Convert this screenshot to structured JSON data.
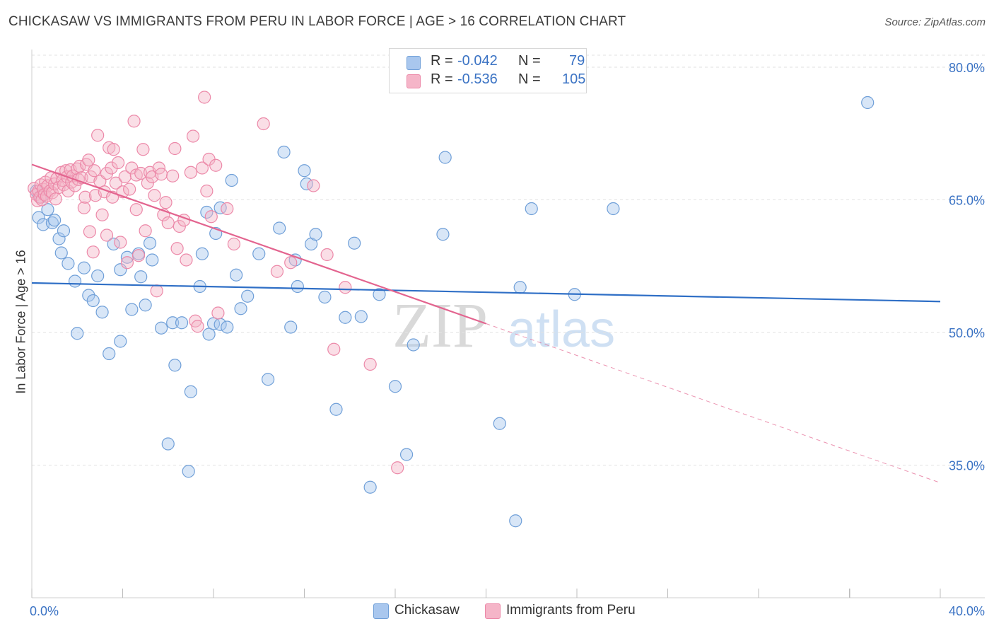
{
  "title": "CHICKASAW VS IMMIGRANTS FROM PERU IN LABOR FORCE | AGE > 16 CORRELATION CHART",
  "source": "Source: ZipAtlas.com",
  "watermark": {
    "zip": "ZIP",
    "atlas": "atlas"
  },
  "legend": [
    {
      "r_label": "R =",
      "r_value": "-0.042",
      "n_label": "N =",
      "n_value": "79",
      "color": "#a9c7ee"
    },
    {
      "r_label": "R =",
      "r_value": "-0.536",
      "n_label": "N =",
      "n_value": "105",
      "color": "#f5b5c8"
    }
  ],
  "colors": {
    "blue_fill": "#a9c7ee",
    "blue_stroke": "#6f9fd8",
    "blue_line": "#2f6fc6",
    "pink_fill": "#f5b5c8",
    "pink_stroke": "#ec88a8",
    "pink_line": "#e3648f",
    "axis_text": "#3b73c4",
    "grid": "#e2e2e2"
  },
  "chart_data": {
    "type": "scatter",
    "title": "CHICKASAW VS IMMIGRANTS FROM PERU IN LABOR FORCE | AGE > 16 CORRELATION CHART",
    "xlabel": "",
    "ylabel": "In Labor Force | Age > 16",
    "xlim": [
      0,
      40
    ],
    "ylim": [
      20,
      82
    ],
    "x_tick_labels": [
      "0.0%",
      "40.0%"
    ],
    "y_ticks": [
      35,
      50,
      65,
      80
    ],
    "y_tick_labels": [
      "35.0%",
      "50.0%",
      "65.0%",
      "80.0%"
    ],
    "grid": true,
    "series": [
      {
        "name": "Chickasaw",
        "color": "#a9c7ee",
        "trend": {
          "x": [
            0,
            40
          ],
          "y": [
            55.6,
            53.5
          ],
          "style": "solid"
        },
        "points": [
          [
            0.2,
            66.0
          ],
          [
            0.4,
            65.3
          ],
          [
            0.3,
            63.0
          ],
          [
            0.5,
            62.2
          ],
          [
            0.7,
            63.9
          ],
          [
            0.9,
            62.4
          ],
          [
            1.0,
            62.7
          ],
          [
            1.2,
            60.6
          ],
          [
            1.4,
            61.5
          ],
          [
            1.3,
            59.0
          ],
          [
            1.6,
            57.8
          ],
          [
            1.9,
            55.8
          ],
          [
            2.3,
            57.3
          ],
          [
            2.0,
            49.9
          ],
          [
            2.5,
            54.2
          ],
          [
            2.7,
            53.6
          ],
          [
            2.9,
            56.4
          ],
          [
            3.1,
            52.3
          ],
          [
            3.4,
            47.6
          ],
          [
            3.6,
            60.0
          ],
          [
            3.9,
            49.0
          ],
          [
            3.9,
            57.1
          ],
          [
            4.2,
            58.5
          ],
          [
            4.4,
            52.6
          ],
          [
            4.7,
            58.9
          ],
          [
            4.8,
            56.3
          ],
          [
            5.0,
            53.1
          ],
          [
            5.2,
            60.1
          ],
          [
            5.3,
            58.2
          ],
          [
            5.7,
            50.5
          ],
          [
            6.0,
            37.4
          ],
          [
            6.2,
            51.1
          ],
          [
            6.3,
            46.3
          ],
          [
            6.6,
            51.1
          ],
          [
            6.9,
            34.3
          ],
          [
            7.0,
            43.3
          ],
          [
            7.4,
            55.2
          ],
          [
            7.5,
            58.9
          ],
          [
            7.8,
            49.8
          ],
          [
            8.0,
            51.0
          ],
          [
            8.3,
            50.9
          ],
          [
            7.7,
            63.6
          ],
          [
            8.1,
            61.2
          ],
          [
            8.3,
            64.1
          ],
          [
            8.6,
            50.6
          ],
          [
            8.8,
            67.2
          ],
          [
            9.0,
            56.5
          ],
          [
            9.2,
            52.7
          ],
          [
            9.5,
            54.1
          ],
          [
            10.0,
            58.9
          ],
          [
            10.4,
            44.7
          ],
          [
            10.9,
            61.8
          ],
          [
            11.1,
            70.4
          ],
          [
            11.4,
            50.6
          ],
          [
            11.6,
            58.2
          ],
          [
            11.7,
            55.2
          ],
          [
            12.0,
            68.3
          ],
          [
            12.1,
            66.8
          ],
          [
            12.3,
            60.0
          ],
          [
            12.5,
            61.1
          ],
          [
            12.9,
            54.0
          ],
          [
            13.4,
            41.3
          ],
          [
            13.8,
            51.7
          ],
          [
            14.2,
            60.1
          ],
          [
            14.5,
            51.8
          ],
          [
            14.9,
            32.5
          ],
          [
            15.3,
            54.3
          ],
          [
            16.0,
            43.9
          ],
          [
            16.5,
            36.2
          ],
          [
            16.8,
            48.6
          ],
          [
            18.1,
            61.1
          ],
          [
            18.2,
            69.8
          ],
          [
            20.6,
            39.7
          ],
          [
            21.3,
            28.7
          ],
          [
            21.5,
            55.1
          ],
          [
            22.0,
            64.0
          ],
          [
            23.9,
            54.3
          ],
          [
            25.6,
            64.0
          ],
          [
            36.8,
            76.0
          ]
        ]
      },
      {
        "name": "Immigrants from Peru",
        "color": "#f5b5c8",
        "trend": {
          "x": [
            0,
            20
          ],
          "y": [
            69.0,
            51.0
          ],
          "style": "solid",
          "dashed_x": [
            20,
            40
          ],
          "dashed_y": [
            51.0,
            33.0
          ]
        },
        "points": [
          [
            0.1,
            66.3
          ],
          [
            0.2,
            65.6
          ],
          [
            0.25,
            64.9
          ],
          [
            0.3,
            66.0
          ],
          [
            0.35,
            65.3
          ],
          [
            0.4,
            66.7
          ],
          [
            0.45,
            65.0
          ],
          [
            0.5,
            66.2
          ],
          [
            0.55,
            65.6
          ],
          [
            0.6,
            67.0
          ],
          [
            0.65,
            65.4
          ],
          [
            0.7,
            66.6
          ],
          [
            0.8,
            66.0
          ],
          [
            0.85,
            67.5
          ],
          [
            0.9,
            65.8
          ],
          [
            1.0,
            66.8
          ],
          [
            1.05,
            65.1
          ],
          [
            1.1,
            67.4
          ],
          [
            1.2,
            66.4
          ],
          [
            1.3,
            68.1
          ],
          [
            1.35,
            67.2
          ],
          [
            1.4,
            66.7
          ],
          [
            1.5,
            68.3
          ],
          [
            1.55,
            67.6
          ],
          [
            1.6,
            66.0
          ],
          [
            1.7,
            68.4
          ],
          [
            1.75,
            67.0
          ],
          [
            1.8,
            67.7
          ],
          [
            1.9,
            66.6
          ],
          [
            2.0,
            68.5
          ],
          [
            2.05,
            67.3
          ],
          [
            2.1,
            68.8
          ],
          [
            2.2,
            67.5
          ],
          [
            2.3,
            64.1
          ],
          [
            2.35,
            65.3
          ],
          [
            2.4,
            69.0
          ],
          [
            2.5,
            69.5
          ],
          [
            2.55,
            61.4
          ],
          [
            2.6,
            67.6
          ],
          [
            2.7,
            59.1
          ],
          [
            2.75,
            68.3
          ],
          [
            2.8,
            65.5
          ],
          [
            2.9,
            72.3
          ],
          [
            3.0,
            67.1
          ],
          [
            3.1,
            63.3
          ],
          [
            3.2,
            65.9
          ],
          [
            3.3,
            68.0
          ],
          [
            3.4,
            70.9
          ],
          [
            3.5,
            68.6
          ],
          [
            3.55,
            65.3
          ],
          [
            3.6,
            70.7
          ],
          [
            3.7,
            66.9
          ],
          [
            3.8,
            69.2
          ],
          [
            3.9,
            60.2
          ],
          [
            4.0,
            65.9
          ],
          [
            4.1,
            67.6
          ],
          [
            4.2,
            57.9
          ],
          [
            4.3,
            66.2
          ],
          [
            4.4,
            68.6
          ],
          [
            4.5,
            73.9
          ],
          [
            4.6,
            67.8
          ],
          [
            4.7,
            58.7
          ],
          [
            4.8,
            68.0
          ],
          [
            4.9,
            70.7
          ],
          [
            5.0,
            61.5
          ],
          [
            5.1,
            66.9
          ],
          [
            5.2,
            68.1
          ],
          [
            5.3,
            67.6
          ],
          [
            5.4,
            65.5
          ],
          [
            5.5,
            54.7
          ],
          [
            5.6,
            68.6
          ],
          [
            5.7,
            67.9
          ],
          [
            5.8,
            63.3
          ],
          [
            5.9,
            64.7
          ],
          [
            6.0,
            62.4
          ],
          [
            6.2,
            67.7
          ],
          [
            6.3,
            70.8
          ],
          [
            6.4,
            59.5
          ],
          [
            6.5,
            62.0
          ],
          [
            6.7,
            62.7
          ],
          [
            6.8,
            58.2
          ],
          [
            7.0,
            68.1
          ],
          [
            7.1,
            72.2
          ],
          [
            7.2,
            51.3
          ],
          [
            7.3,
            50.7
          ],
          [
            7.5,
            68.6
          ],
          [
            7.6,
            76.6
          ],
          [
            7.7,
            66.0
          ],
          [
            7.8,
            69.6
          ],
          [
            7.9,
            63.1
          ],
          [
            8.1,
            68.9
          ],
          [
            8.2,
            52.2
          ],
          [
            8.6,
            64.0
          ],
          [
            8.9,
            60.0
          ],
          [
            10.2,
            73.6
          ],
          [
            10.8,
            56.9
          ],
          [
            11.4,
            57.9
          ],
          [
            12.4,
            66.6
          ],
          [
            13.0,
            58.8
          ],
          [
            13.3,
            48.1
          ],
          [
            13.8,
            55.1
          ],
          [
            14.9,
            46.4
          ],
          [
            16.1,
            34.7
          ],
          [
            4.6,
            63.9
          ],
          [
            3.3,
            61.0
          ]
        ]
      }
    ]
  },
  "bottom_legend": [
    {
      "label": "Chickasaw",
      "color": "#a9c7ee"
    },
    {
      "label": "Immigrants from Peru",
      "color": "#f5b5c8"
    }
  ]
}
